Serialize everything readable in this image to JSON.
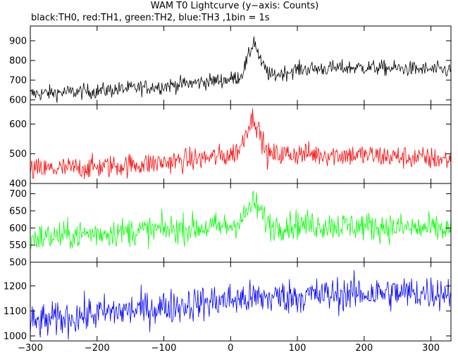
{
  "chart_data": {
    "type": "line",
    "title": "WAM T0 Lightcurve (y−axis: Counts)",
    "subtitle": "black:TH0, red:TH1, green:TH2, blue:TH3 ,1bin = 1s",
    "xlabel": "",
    "ylabel": "",
    "xlim": [
      -300,
      330
    ],
    "x_ticks": [
      -300,
      -200,
      -100,
      0,
      100,
      200,
      300
    ],
    "x_tick_labels": [
      "−300",
      "−200",
      "−100",
      "0",
      "100",
      "200",
      "300"
    ],
    "grid": false,
    "panels": [
      {
        "name": "TH0",
        "color": "#000000",
        "ylim": [
          575,
          975
        ],
        "y_ticks": [
          600,
          700,
          800,
          900
        ],
        "y_tick_labels": [
          "600",
          "700",
          "800",
          "900"
        ],
        "profile_x": [
          -300,
          -200,
          -100,
          0,
          15,
          25,
          35,
          45,
          60,
          100,
          200,
          330
        ],
        "profile_y": [
          630,
          645,
          670,
          705,
          720,
          800,
          905,
          790,
          720,
          755,
          765,
          750
        ],
        "noise": 28
      },
      {
        "name": "TH1",
        "color": "#ff0000",
        "ylim": [
          400,
          665
        ],
        "y_ticks": [
          400,
          500,
          600
        ],
        "y_tick_labels": [
          "400",
          "500",
          "600"
        ],
        "profile_x": [
          -300,
          -200,
          -100,
          0,
          15,
          25,
          35,
          45,
          55,
          100,
          200,
          330
        ],
        "profile_y": [
          445,
          455,
          470,
          495,
          520,
          590,
          625,
          560,
          495,
          500,
          495,
          480
        ],
        "noise": 28
      },
      {
        "name": "TH2",
        "color": "#00ff00",
        "ylim": [
          500,
          730
        ],
        "y_ticks": [
          500,
          550,
          600,
          650,
          700
        ],
        "y_tick_labels": [
          "500",
          "550",
          "600",
          "650",
          "700"
        ],
        "profile_x": [
          -300,
          -200,
          -100,
          0,
          20,
          30,
          38,
          48,
          60,
          100,
          200,
          330
        ],
        "profile_y": [
          570,
          585,
          595,
          605,
          630,
          665,
          670,
          635,
          605,
          610,
          605,
          595
        ],
        "noise": 30
      },
      {
        "name": "TH3",
        "color": "#0000ff",
        "ylim": [
          980,
          1295
        ],
        "y_ticks": [
          1000,
          1100,
          1200
        ],
        "y_tick_labels": [
          "1000",
          "1100",
          "1200"
        ],
        "profile_x": [
          -300,
          -200,
          -100,
          0,
          100,
          200,
          330
        ],
        "profile_y": [
          1050,
          1090,
          1115,
          1145,
          1160,
          1170,
          1175
        ],
        "noise": 50
      }
    ]
  }
}
